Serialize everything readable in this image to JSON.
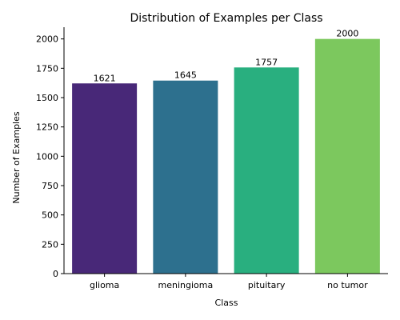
{
  "chart_data": {
    "type": "bar",
    "title": "Distribution of Examples per Class",
    "xlabel": "Class",
    "ylabel": "Number of Examples",
    "categories": [
      "glioma",
      "meningioma",
      "pituitary",
      "no tumor"
    ],
    "values": [
      1621,
      1645,
      1757,
      2000
    ],
    "data_labels": [
      "1621",
      "1645",
      "1757",
      "2000"
    ],
    "colors": [
      "#482878",
      "#2d708e",
      "#29af7f",
      "#7cc85e"
    ],
    "ylim": [
      0,
      2100
    ],
    "yticks": [
      0,
      250,
      500,
      750,
      1000,
      1250,
      1500,
      1750,
      2000
    ],
    "ytick_labels": [
      "0",
      "250",
      "500",
      "750",
      "1000",
      "1250",
      "1500",
      "1750",
      "2000"
    ],
    "grid": false,
    "legend": "none"
  }
}
